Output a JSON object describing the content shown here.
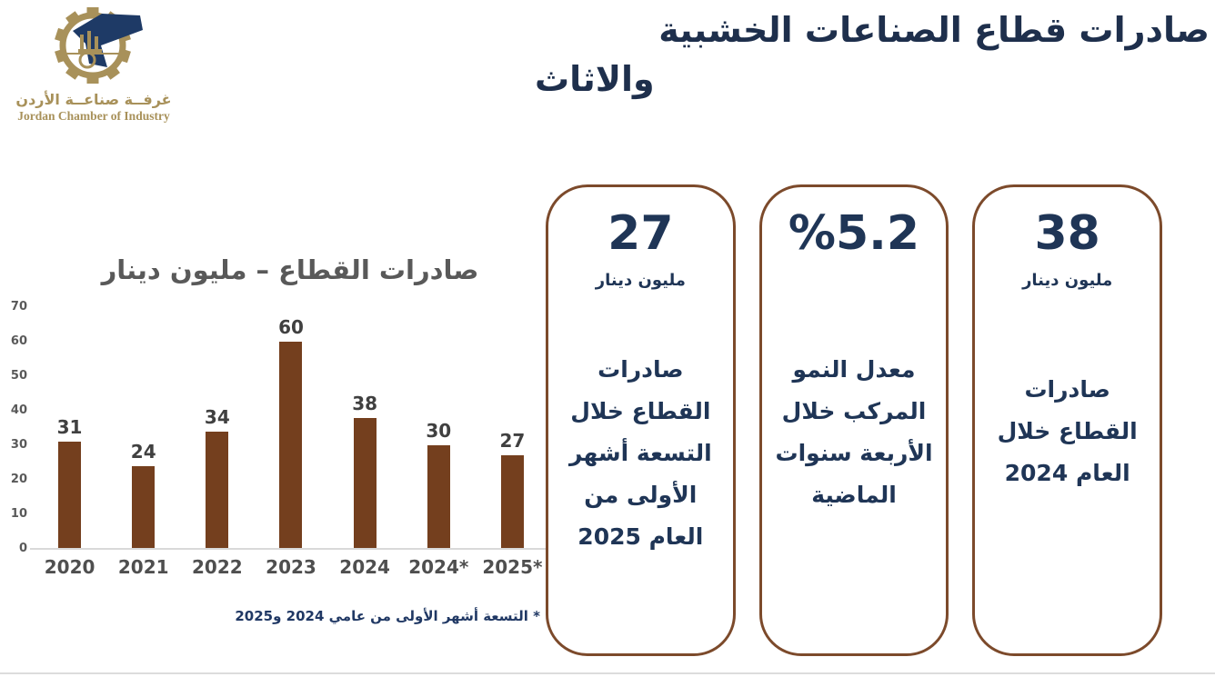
{
  "logo": {
    "arabic_name": "غرفــة صناعــة الأردن",
    "english_name": "Jordan Chamber of Industry"
  },
  "header": {
    "title_line1": "صادرات قطاع الصناعات الخشبية",
    "title_line2": "والاثاث"
  },
  "chart_data": {
    "type": "bar",
    "title": "صادرات القطاع – مليون دينار",
    "categories": [
      "2020",
      "2021",
      "2022",
      "2023",
      "2024",
      "2024*",
      "2025*"
    ],
    "values": [
      31,
      24,
      34,
      60,
      38,
      30,
      27
    ],
    "xlabel": "",
    "ylabel": "",
    "ylim": [
      0,
      70
    ],
    "ytick_step": 10,
    "grid": false,
    "legend": "none",
    "bar_color": "#743F1E",
    "footnote": "* التسعة أشهر الأولى من عامي 2024 و2025"
  },
  "cards": [
    {
      "value": "27",
      "unit": "مليون دينار",
      "description": "صادرات القطاع خلال التسعة أشهر الأولى من العام 2025"
    },
    {
      "value": "%5.2",
      "unit": "",
      "description": "معدل النمو المركب خلال الأربعة سنوات الماضية"
    },
    {
      "value": "38",
      "unit": "مليون دينار",
      "description": "صادرات القطاع خلال العام 2024"
    }
  ],
  "colors": {
    "title_navy": "#1E2F4C",
    "card_navy": "#1F3556",
    "chart_title_gray": "#595959",
    "bar_brown": "#743F1E",
    "card_border_brown": "#7C4A2B",
    "logo_gold": "#A8915A",
    "logo_navy": "#1E3A66",
    "axis_line": "#D9D9D9"
  }
}
